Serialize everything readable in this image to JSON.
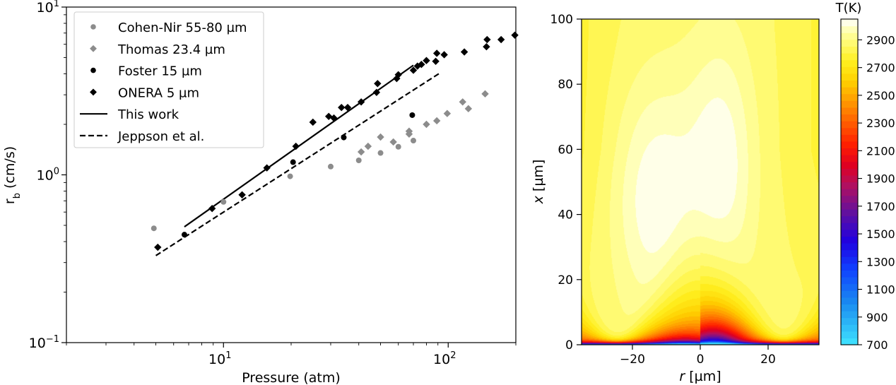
{
  "chart_data": [
    {
      "type": "scatter",
      "xlabel": "Pressure (atm)",
      "ylabel": "r_b (cm/s)",
      "xscale": "log",
      "yscale": "log",
      "xlim": [
        2,
        200
      ],
      "ylim": [
        0.1,
        10
      ],
      "x_tick_labels": [
        {
          "value": 10,
          "label": "10^1"
        },
        {
          "value": 100,
          "label": "10^2"
        }
      ],
      "y_tick_labels": [
        {
          "value": 0.1,
          "label": "10^-1"
        },
        {
          "value": 1,
          "label": "10^0"
        },
        {
          "value": 10,
          "label": "10^1"
        }
      ],
      "legend_position": "top-left",
      "series": [
        {
          "name": "Cohen-Nir 55-80 µm",
          "marker": "circle",
          "color": "#8c8c8c",
          "points": [
            [
              4.9,
              0.48
            ],
            [
              10,
              0.69
            ],
            [
              19.8,
              0.98
            ],
            [
              30,
              1.12
            ],
            [
              40,
              1.22
            ],
            [
              50,
              1.35
            ],
            [
              60,
              1.47
            ],
            [
              70,
              1.6
            ]
          ]
        },
        {
          "name": "Thomas 23.4 µm",
          "marker": "diamond",
          "color": "#8c8c8c",
          "points": [
            [
              41,
              1.37
            ],
            [
              44,
              1.48
            ],
            [
              50,
              1.68
            ],
            [
              57,
              1.57
            ],
            [
              67,
              1.75
            ],
            [
              67,
              1.82
            ],
            [
              80,
              2.0
            ],
            [
              89,
              2.1
            ],
            [
              99,
              2.32
            ],
            [
              116,
              2.72
            ],
            [
              123,
              2.48
            ],
            [
              146,
              3.04
            ]
          ]
        },
        {
          "name": "Foster 15 µm",
          "marker": "circle",
          "color": "#000000",
          "points": [
            [
              6.7,
              0.44
            ],
            [
              20.4,
              1.19
            ],
            [
              34.3,
              1.67
            ],
            [
              69.2,
              2.27
            ]
          ]
        },
        {
          "name": "ONERA 5 µm",
          "marker": "diamond",
          "color": "#000000",
          "points": [
            [
              5.1,
              0.37
            ],
            [
              8.9,
              0.63
            ],
            [
              12.1,
              0.76
            ],
            [
              15.6,
              1.1
            ],
            [
              21,
              1.48
            ],
            [
              25,
              2.06
            ],
            [
              29.4,
              2.23
            ],
            [
              31,
              2.18
            ],
            [
              33.5,
              2.52
            ],
            [
              35.7,
              2.52
            ],
            [
              41,
              2.72
            ],
            [
              48,
              3.1
            ],
            [
              48.5,
              3.5
            ],
            [
              59,
              3.75
            ],
            [
              60,
              3.95
            ],
            [
              70,
              4.2
            ],
            [
              73,
              4.45
            ],
            [
              76,
              4.55
            ],
            [
              80,
              4.8
            ],
            [
              88,
              4.75
            ],
            [
              89,
              5.3
            ],
            [
              96,
              5.2
            ],
            [
              118,
              5.4
            ],
            [
              148,
              5.8
            ],
            [
              149,
              6.4
            ],
            [
              172,
              6.4
            ],
            [
              198,
              6.8
            ]
          ]
        }
      ],
      "lines": [
        {
          "name": "This work",
          "style": "solid",
          "color": "#000000",
          "points": [
            [
              6.7,
              0.49
            ],
            [
              70,
              4.5
            ]
          ]
        },
        {
          "name": "Jeppson et al.",
          "style": "dashed",
          "color": "#000000",
          "points": [
            [
              5.0,
              0.33
            ],
            [
              92,
              4.05
            ]
          ]
        }
      ]
    },
    {
      "type": "heatmap",
      "xlabel": "r [µm]",
      "ylabel": "x [µm]",
      "xlim": [
        -35,
        35
      ],
      "ylim": [
        0,
        100
      ],
      "x_ticks": [
        -20,
        0,
        20
      ],
      "y_ticks": [
        0,
        20,
        40,
        60,
        80,
        100
      ],
      "colorbar": {
        "title": "T(K)",
        "min": 700,
        "max": 3050,
        "ticks": [
          700,
          900,
          1100,
          1300,
          1500,
          1700,
          1900,
          2100,
          2300,
          2500,
          2700,
          2900
        ],
        "colormap": [
          {
            "t": 700,
            "color": "#40e4ff"
          },
          {
            "t": 1000,
            "color": "#1a8cf0"
          },
          {
            "t": 1250,
            "color": "#1040ff"
          },
          {
            "t": 1450,
            "color": "#2000e0"
          },
          {
            "t": 1650,
            "color": "#6010a0"
          },
          {
            "t": 1850,
            "color": "#b01060"
          },
          {
            "t": 2000,
            "color": "#e00020"
          },
          {
            "t": 2150,
            "color": "#ff2000"
          },
          {
            "t": 2350,
            "color": "#ff7000"
          },
          {
            "t": 2600,
            "color": "#ffd000"
          },
          {
            "t": 2750,
            "color": "#fff020"
          },
          {
            "t": 2950,
            "color": "#ffffa0"
          },
          {
            "t": 3050,
            "color": "#ffffff"
          }
        ]
      }
    }
  ],
  "labels": {
    "left_xlabel": "Pressure (atm)",
    "left_ylabel_main": "r",
    "left_ylabel_sub": "b",
    "left_ylabel_unit": " (cm/s)",
    "right_xlabel_var": "r",
    "right_xlabel_unit": " [µm]",
    "right_ylabel_var": "x",
    "right_ylabel_unit": " [µm]",
    "colorbar_title": "T(K)"
  },
  "colors": {
    "gray_marker": "#8c8c8c",
    "black_marker": "#000000"
  }
}
